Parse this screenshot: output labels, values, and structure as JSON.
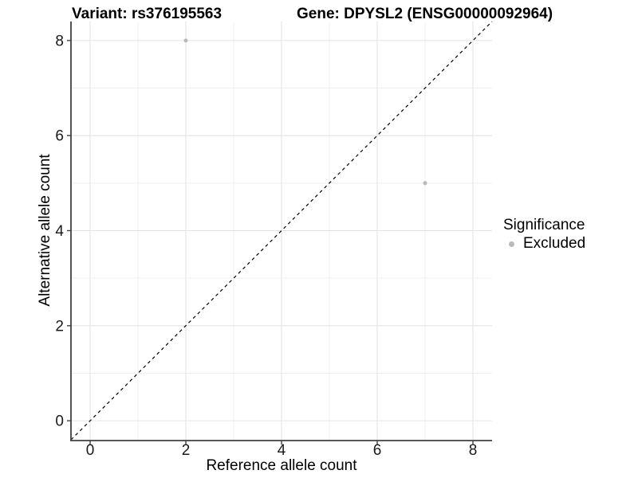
{
  "header": {
    "variant_title": "Variant: rs376195563",
    "gene_title": "Gene: DPYSL2 (ENSG00000092964)"
  },
  "chart_data": {
    "type": "scatter",
    "title": "Variant: rs376195563 — Gene: DPYSL2 (ENSG00000092964)",
    "xlabel": "Reference allele count",
    "ylabel": "Alternative allele count",
    "xlim": [
      -0.4,
      8.4
    ],
    "ylim": [
      -0.4,
      8.4
    ],
    "x_ticks": [
      0,
      2,
      4,
      6,
      8
    ],
    "y_ticks": [
      0,
      2,
      4,
      6,
      8
    ],
    "x_minor_ticks": [
      1,
      3,
      5,
      7
    ],
    "y_minor_ticks": [
      1,
      3,
      5,
      7
    ],
    "grid": "major+minor",
    "identity_line": {
      "style": "dashed",
      "color": "#000000",
      "span": [
        -0.4,
        8.4
      ]
    },
    "series": [
      {
        "name": "Excluded",
        "color": "#b9b9b9",
        "points": [
          [
            2,
            8
          ],
          [
            7,
            5
          ]
        ]
      }
    ],
    "legend": {
      "title": "Significance",
      "position": "right",
      "entries": [
        {
          "label": "Excluded",
          "color": "#b9b9b9"
        }
      ]
    }
  },
  "colors": {
    "background": "#ffffff",
    "grid_major": "#e4e4e4",
    "grid_minor": "#efefef",
    "axis": "#404040",
    "tick_label": "#1a1a1a",
    "point": "#b9b9b9",
    "text": "#000000"
  }
}
